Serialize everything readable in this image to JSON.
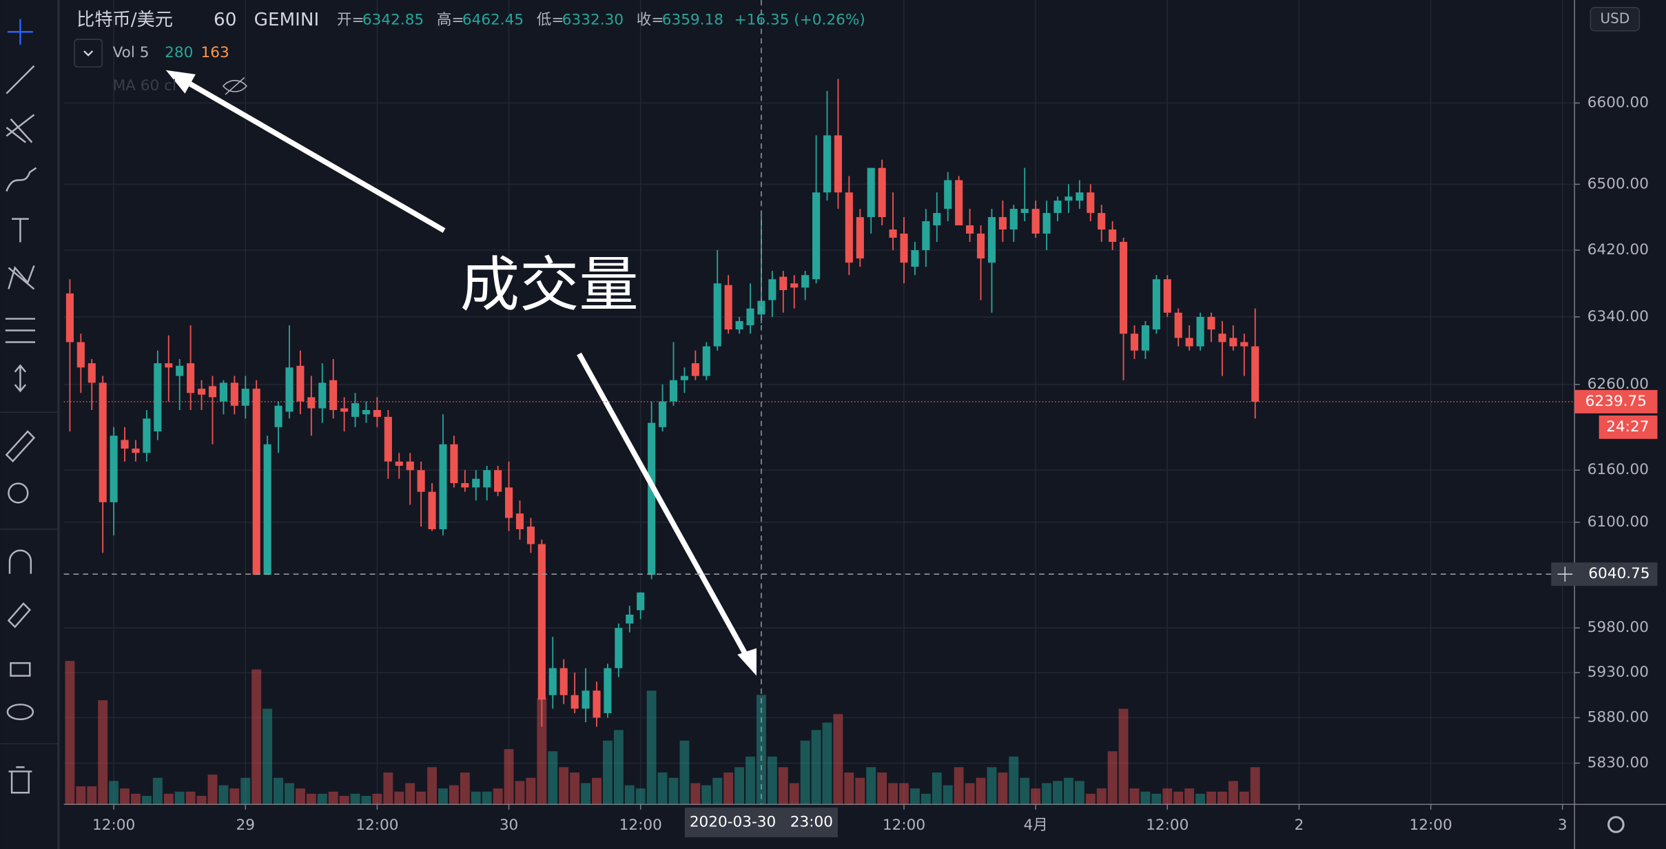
{
  "chart_data": {
    "type": "candlestick",
    "header": {
      "symbol": "比特币/美元",
      "interval": "60",
      "exchange": "GEMINI",
      "ohlc": [
        {
          "key": "开=",
          "value": "6342.85"
        },
        {
          "key": "高=",
          "value": "6462.45"
        },
        {
          "key": "低=",
          "value": "6332.30"
        },
        {
          "key": "收=",
          "value": "6359.18"
        }
      ],
      "change": "+16.35 (+0.26%)"
    },
    "indicator": {
      "name": "Vol 5",
      "value": "280",
      "ma": "163",
      "hidden": "MA 60 cl"
    },
    "currency": "USD",
    "annotation": "成交量",
    "up_color": "#26a69a",
    "down_color": "#ef5350",
    "log_scale": true,
    "grid": true,
    "xlim": [
      7.45,
      145.1
    ],
    "xticks": [
      {
        "value": 12,
        "label": "12:00"
      },
      {
        "value": 24,
        "label": "29"
      },
      {
        "value": 36,
        "label": "12:00"
      },
      {
        "value": 48,
        "label": "30"
      },
      {
        "value": 60,
        "label": "12:00"
      },
      {
        "value": 84,
        "label": "12:00"
      },
      {
        "value": 96,
        "label": "4月"
      },
      {
        "value": 108,
        "label": "12:00"
      },
      {
        "value": 120,
        "label": "2"
      },
      {
        "value": 132,
        "label": "12:00"
      },
      {
        "value": 144,
        "label": "3"
      }
    ],
    "ylim": [
      5785,
      6729
    ],
    "yticks": [
      {
        "value": 5830,
        "label": "5830.00"
      },
      {
        "value": 5880,
        "label": "5880.00"
      },
      {
        "value": 5930,
        "label": "5930.00"
      },
      {
        "value": 5980,
        "label": "5980.00"
      },
      {
        "value": 6100,
        "label": "6100.00"
      },
      {
        "value": 6160,
        "label": "6160.00"
      },
      {
        "value": 6260,
        "label": "6260.00"
      },
      {
        "value": 6340,
        "label": "6340.00"
      },
      {
        "value": 6420,
        "label": "6420.00"
      },
      {
        "value": 6500,
        "label": "6500.00"
      },
      {
        "value": 6600,
        "label": "6600.00"
      }
    ],
    "last_price": 6239.75,
    "countdown": "24:27",
    "crosshair": {
      "x": 71,
      "price": 6040.75,
      "x_label": "2020-03-30   23:00"
    },
    "x": [
      8,
      9,
      10,
      11,
      12,
      13,
      14,
      15,
      16,
      17,
      18,
      19,
      20,
      21,
      22,
      23,
      24,
      25,
      26,
      27,
      28,
      29,
      30,
      31,
      32,
      33,
      34,
      35,
      36,
      37,
      38,
      39,
      40,
      41,
      42,
      43,
      44,
      45,
      46,
      47,
      48,
      49,
      50,
      51,
      52,
      53,
      54,
      55,
      56,
      57,
      58,
      59,
      60,
      61,
      62,
      63,
      64,
      65,
      66,
      67,
      68,
      69,
      70,
      71,
      72,
      73,
      74,
      75,
      76,
      77,
      78,
      79,
      80,
      81,
      82,
      83,
      84,
      85,
      86,
      87,
      88,
      89,
      90,
      91,
      92,
      93,
      94,
      95,
      96,
      97,
      98,
      99,
      100,
      101,
      102,
      103,
      104,
      105,
      106,
      107,
      108,
      109,
      110,
      111,
      112,
      113,
      114,
      115,
      116
    ],
    "open": [
      6368,
      6310,
      6285,
      6262,
      6123,
      6195,
      6185,
      6180,
      6205,
      6285,
      6270,
      6285,
      6255,
      6258,
      6240,
      6262,
      6235,
      6255,
      6040,
      6210,
      6228,
      6282,
      6245,
      6232,
      6265,
      6232,
      6222,
      6225,
      6230,
      6222,
      6170,
      6170,
      6160,
      6135,
      6092,
      6190,
      6145,
      6140,
      6140,
      6160,
      6140,
      6110,
      6095,
      6075,
      5905,
      5935,
      5905,
      5890,
      5910,
      5885,
      5935,
      5985,
      6000,
      6040,
      6210,
      6240,
      6265,
      6285,
      6270,
      6305,
      6378,
      6325,
      6330,
      6342.85,
      6360,
      6388,
      6380,
      6375,
      6385,
      6490,
      6560,
      6490,
      6460,
      6460,
      6520,
      6445,
      6440,
      6400,
      6420,
      6450,
      6470,
      6505,
      6450,
      6440,
      6405,
      6460,
      6445,
      6465,
      6470,
      6440,
      6465,
      6480,
      6480,
      6490,
      6465,
      6445,
      6430,
      6320,
      6300,
      6325,
      6385,
      6345,
      6315,
      6305,
      6340,
      6320,
      6315,
      6310,
      6305
    ],
    "high": [
      6385,
      6320,
      6290,
      6270,
      6210,
      6210,
      6195,
      6230,
      6300,
      6318,
      6290,
      6330,
      6265,
      6270,
      6265,
      6270,
      6270,
      6265,
      6200,
      6240,
      6330,
      6300,
      6270,
      6285,
      6290,
      6245,
      6250,
      6240,
      6245,
      6230,
      6180,
      6180,
      6170,
      6145,
      6225,
      6200,
      6160,
      6160,
      6165,
      6165,
      6170,
      6125,
      6105,
      6080,
      5970,
      5945,
      5930,
      5935,
      5920,
      5940,
      5985,
      6005,
      6020,
      6240,
      6260,
      6310,
      6280,
      6300,
      6310,
      6420,
      6390,
      6340,
      6380,
      6462.45,
      6395,
      6395,
      6390,
      6395,
      6560,
      6615,
      6630,
      6510,
      6470,
      6520,
      6530,
      6490,
      6460,
      6430,
      6470,
      6490,
      6515,
      6510,
      6470,
      6450,
      6470,
      6480,
      6475,
      6520,
      6480,
      6480,
      6485,
      6500,
      6505,
      6500,
      6475,
      6455,
      6435,
      6330,
      6335,
      6390,
      6390,
      6350,
      6330,
      6345,
      6345,
      6335,
      6330,
      6320,
      6350
    ],
    "low": [
      6205,
      6250,
      6230,
      6065,
      6085,
      6170,
      6170,
      6170,
      6195,
      6240,
      6230,
      6230,
      6230,
      6190,
      6225,
      6225,
      6220,
      6040,
      6040,
      6180,
      6220,
      6225,
      6200,
      6215,
      6220,
      6205,
      6210,
      6215,
      6210,
      6150,
      6150,
      6120,
      6095,
      6090,
      6085,
      6140,
      6135,
      6125,
      6125,
      6130,
      6090,
      6080,
      6065,
      5870,
      5890,
      5895,
      5885,
      5875,
      5870,
      5880,
      5925,
      5975,
      5990,
      6035,
      6205,
      6235,
      6250,
      6265,
      6265,
      6300,
      6320,
      6320,
      6320,
      6332.3,
      6340,
      6345,
      6350,
      6360,
      6380,
      6480,
      6470,
      6390,
      6400,
      6440,
      6450,
      6420,
      6380,
      6390,
      6400,
      6430,
      6455,
      6450,
      6430,
      6360,
      6345,
      6430,
      6430,
      6455,
      6435,
      6420,
      6455,
      6465,
      6470,
      6455,
      6430,
      6420,
      6265,
      6290,
      6290,
      6320,
      6340,
      6305,
      6300,
      6300,
      6310,
      6270,
      6300,
      6270,
      6220
    ],
    "close": [
      6310,
      6280,
      6262,
      6123,
      6200,
      6185,
      6180,
      6220,
      6285,
      6280,
      6282,
      6250,
      6248,
      6245,
      6262,
      6235,
      6255,
      6040,
      6190,
      6235,
      6280,
      6240,
      6232,
      6262,
      6230,
      6228,
      6238,
      6230,
      6222,
      6170,
      6165,
      6160,
      6135,
      6092,
      6190,
      6145,
      6140,
      6150,
      6160,
      6135,
      6105,
      6092,
      6075,
      5900,
      5935,
      5905,
      5890,
      5910,
      5880,
      5935,
      5980,
      5995,
      6020,
      6215,
      6240,
      6265,
      6270,
      6270,
      6305,
      6380,
      6325,
      6335,
      6350,
      6359.18,
      6385,
      6372,
      6375,
      6390,
      6490,
      6560,
      6490,
      6405,
      6410,
      6520,
      6460,
      6435,
      6405,
      6420,
      6455,
      6465,
      6505,
      6450,
      6440,
      6410,
      6460,
      6445,
      6470,
      6470,
      6440,
      6465,
      6480,
      6485,
      6490,
      6465,
      6445,
      6430,
      6320,
      6300,
      6330,
      6385,
      6345,
      6315,
      6305,
      6340,
      6325,
      6310,
      6305,
      6305,
      6239.75
    ],
    "volume": [
      1080,
      136,
      136,
      784,
      176,
      120,
      80,
      64,
      200,
      80,
      96,
      96,
      64,
      224,
      144,
      120,
      200,
      1016,
      720,
      200,
      160,
      120,
      80,
      80,
      96,
      64,
      80,
      64,
      80,
      240,
      96,
      160,
      96,
      280,
      120,
      144,
      240,
      96,
      96,
      120,
      416,
      176,
      200,
      800,
      400,
      280,
      240,
      160,
      200,
      480,
      560,
      144,
      120,
      856,
      240,
      200,
      480,
      160,
      144,
      200,
      240,
      280,
      360,
      824,
      360,
      280,
      160,
      480,
      560,
      616,
      680,
      240,
      200,
      280,
      240,
      160,
      160,
      120,
      80,
      240,
      144,
      280,
      160,
      200,
      280,
      240,
      360,
      200,
      120,
      160,
      176,
      200,
      176,
      80,
      120,
      400,
      720,
      120,
      96,
      80,
      120,
      96,
      120,
      80,
      96,
      96,
      176,
      96,
      280
    ]
  }
}
